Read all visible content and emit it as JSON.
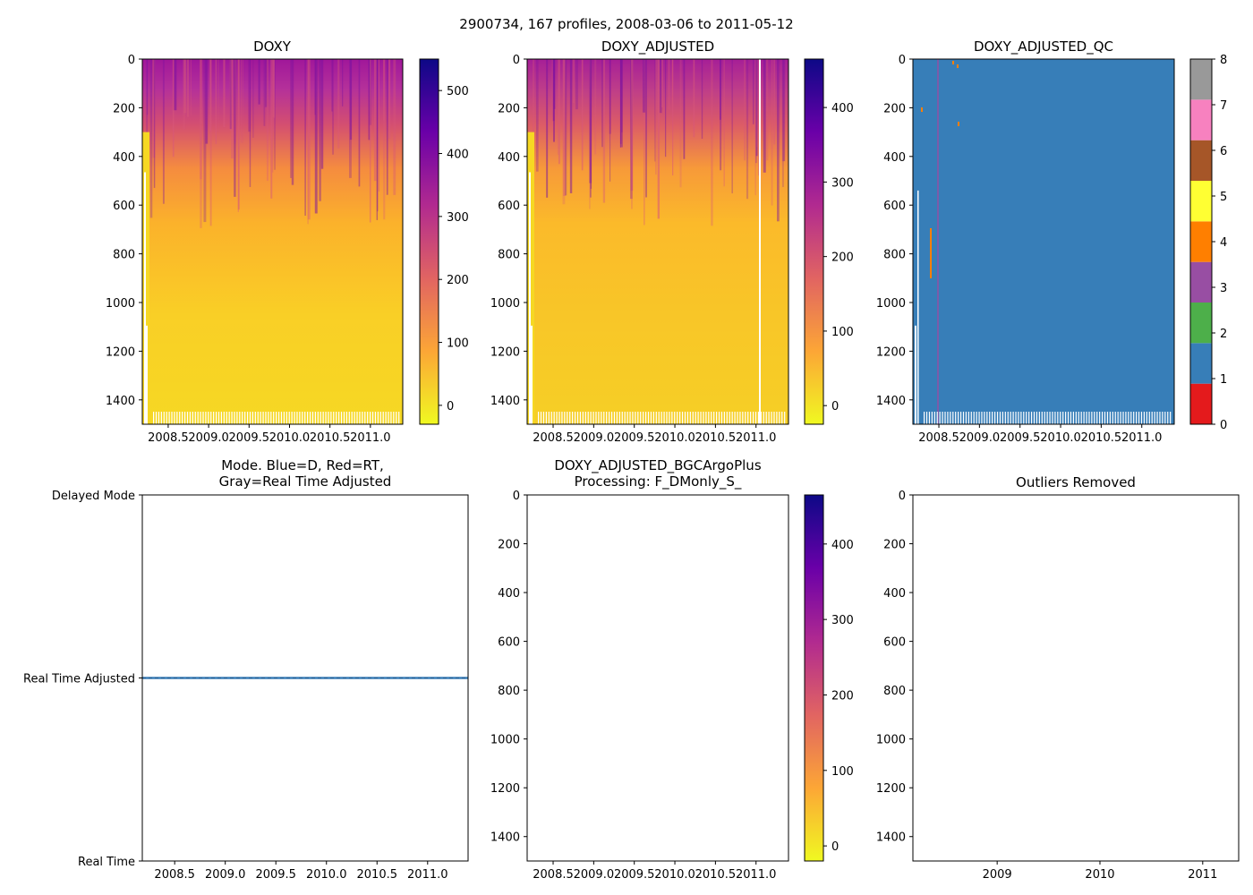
{
  "figure_title": "2900734, 167 profiles, 2008-03-06 to 2011-05-12",
  "colors": {
    "plasma": [
      "#f0f921",
      "#fca636",
      "#e16462",
      "#b12a90",
      "#6a00a8",
      "#0d0887"
    ],
    "field_blue": "#3a7eb8"
  },
  "chart_data": [
    {
      "id": "doxy",
      "type": "heatmap",
      "title": "DOXY",
      "xlabel": "",
      "ylabel": "",
      "xlim": [
        2008.18,
        2011.4
      ],
      "ylim": [
        1500,
        0
      ],
      "x_ticks": [
        2008.5,
        2009.0,
        2009.5,
        2010.0,
        2010.5,
        2011.0
      ],
      "x_tick_labels": [
        "2008.5",
        "2009.0",
        "2009.5",
        "2010.0",
        "2010.5",
        "2011.0"
      ],
      "y_ticks": [
        0,
        200,
        400,
        600,
        800,
        1000,
        1200,
        1400
      ],
      "y_tick_labels": [
        "0",
        "200",
        "400",
        "600",
        "800",
        "1000",
        "1200",
        "1400"
      ],
      "colorbar": {
        "cmap": "plasma_r",
        "range": [
          -30,
          550
        ],
        "ticks": [
          0,
          100,
          200,
          300,
          400,
          500
        ],
        "tick_labels": [
          "0",
          "100",
          "200",
          "300",
          "400",
          "500"
        ]
      },
      "description_profile": {
        "depth": [
          0,
          150,
          300,
          500,
          800,
          1500
        ],
        "value": [
          350,
          290,
          190,
          90,
          45,
          25
        ]
      }
    },
    {
      "id": "doxy-adjusted",
      "type": "heatmap",
      "title": "DOXY_ADJUSTED",
      "xlabel": "",
      "ylabel": "",
      "xlim": [
        2008.18,
        2011.4
      ],
      "ylim": [
        1500,
        0
      ],
      "x_ticks": [
        2008.5,
        2009.0,
        2009.5,
        2010.0,
        2010.5,
        2011.0
      ],
      "x_tick_labels": [
        "2008.5",
        "2009.0",
        "2009.5",
        "2010.0",
        "2010.5",
        "2011.0"
      ],
      "y_ticks": [
        0,
        200,
        400,
        600,
        800,
        1000,
        1200,
        1400
      ],
      "y_tick_labels": [
        "0",
        "200",
        "400",
        "600",
        "800",
        "1000",
        "1200",
        "1400"
      ],
      "colorbar": {
        "cmap": "plasma_r",
        "range": [
          -25,
          465
        ],
        "ticks": [
          0,
          100,
          200,
          300,
          400
        ],
        "tick_labels": [
          "0",
          "100",
          "200",
          "300",
          "400"
        ]
      },
      "description_profile": {
        "depth": [
          0,
          150,
          300,
          500,
          800,
          1500
        ],
        "value": [
          300,
          250,
          160,
          75,
          40,
          22
        ]
      }
    },
    {
      "id": "doxy-adjusted-qc",
      "type": "heatmap",
      "title": "DOXY_ADJUSTED_QC",
      "xlabel": "",
      "ylabel": "",
      "xlim": [
        2008.18,
        2011.4
      ],
      "ylim": [
        1500,
        0
      ],
      "x_ticks": [
        2008.5,
        2009.0,
        2009.5,
        2010.0,
        2010.5,
        2011.0
      ],
      "x_tick_labels": [
        "2008.5",
        "2009.0",
        "2009.5",
        "2010.0",
        "2010.5",
        "2011.0"
      ],
      "y_ticks": [
        0,
        200,
        400,
        600,
        800,
        1000,
        1200,
        1400
      ],
      "y_tick_labels": [
        "0",
        "200",
        "400",
        "600",
        "800",
        "1000",
        "1200",
        "1400"
      ],
      "dominant_flag": 1,
      "colorbar": {
        "cmap": "discrete",
        "range": [
          0,
          8
        ],
        "classes": [
          {
            "flag": 0,
            "color": "#e41a1c"
          },
          {
            "flag": 1,
            "color": "#377eb8"
          },
          {
            "flag": 2,
            "color": "#4daf4a"
          },
          {
            "flag": 3,
            "color": "#984ea3"
          },
          {
            "flag": 4,
            "color": "#ff7f00"
          },
          {
            "flag": 5,
            "color": "#ffff33"
          },
          {
            "flag": 6,
            "color": "#a65628"
          },
          {
            "flag": 7,
            "color": "#f781bf"
          },
          {
            "flag": 8,
            "color": "#999999"
          }
        ],
        "ticks": [
          0,
          1,
          2,
          3,
          4,
          5,
          6,
          7,
          8
        ],
        "tick_labels": [
          "0",
          "1",
          "2",
          "3",
          "4",
          "5",
          "6",
          "7",
          "8"
        ]
      }
    },
    {
      "id": "mode",
      "type": "line",
      "title": "Mode. Blue=D, Red=RT,",
      "title_line2": "Gray=Real Time Adjusted",
      "xlabel": "",
      "ylabel": "",
      "xlim": [
        2008.18,
        2011.4
      ],
      "ylim": [
        0,
        2
      ],
      "x_ticks": [
        2008.5,
        2009.0,
        2009.5,
        2010.0,
        2010.5,
        2011.0
      ],
      "x_tick_labels": [
        "2008.5",
        "2009.0",
        "2009.5",
        "2010.0",
        "2010.5",
        "2011.0"
      ],
      "y_ticks": [
        2,
        1,
        0
      ],
      "y_tick_labels": [
        "Delayed Mode",
        "Real Time Adjusted",
        "Real Time"
      ],
      "series": [
        {
          "name": "mode",
          "x": [
            2008.18,
            2011.4
          ],
          "values": [
            1,
            1
          ]
        }
      ]
    },
    {
      "id": "bgc-plus",
      "type": "heatmap",
      "title": "DOXY_ADJUSTED_BGCArgoPlus",
      "title_line2": "Processing: F_DMonly_S_",
      "xlabel": "",
      "ylabel": "",
      "xlim": [
        2008.18,
        2011.4
      ],
      "ylim": [
        1500,
        0
      ],
      "x_ticks": [
        2008.5,
        2009.0,
        2009.5,
        2010.0,
        2010.5,
        2011.0
      ],
      "x_tick_labels": [
        "2008.5",
        "2009.0",
        "2009.5",
        "2010.0",
        "2010.5",
        "2011.0"
      ],
      "y_ticks": [
        0,
        200,
        400,
        600,
        800,
        1000,
        1200,
        1400
      ],
      "y_tick_labels": [
        "0",
        "200",
        "400",
        "600",
        "800",
        "1000",
        "1200",
        "1400"
      ],
      "colorbar": {
        "cmap": "plasma_r",
        "range": [
          -20,
          465
        ],
        "ticks": [
          0,
          100,
          200,
          300,
          400
        ],
        "tick_labels": [
          "0",
          "100",
          "200",
          "300",
          "400"
        ]
      },
      "empty": true
    },
    {
      "id": "outliers",
      "type": "scatter",
      "title": "Outliers Removed",
      "xlabel": "",
      "ylabel": "",
      "xlim": [
        2008.18,
        2011.35
      ],
      "ylim": [
        1500,
        0
      ],
      "x_ticks": [
        2009,
        2010,
        2011
      ],
      "x_tick_labels": [
        "2009",
        "2010",
        "2011"
      ],
      "y_ticks": [
        0,
        200,
        400,
        600,
        800,
        1000,
        1200,
        1400
      ],
      "y_tick_labels": [
        "0",
        "200",
        "400",
        "600",
        "800",
        "1000",
        "1200",
        "1400"
      ],
      "empty": true
    }
  ]
}
